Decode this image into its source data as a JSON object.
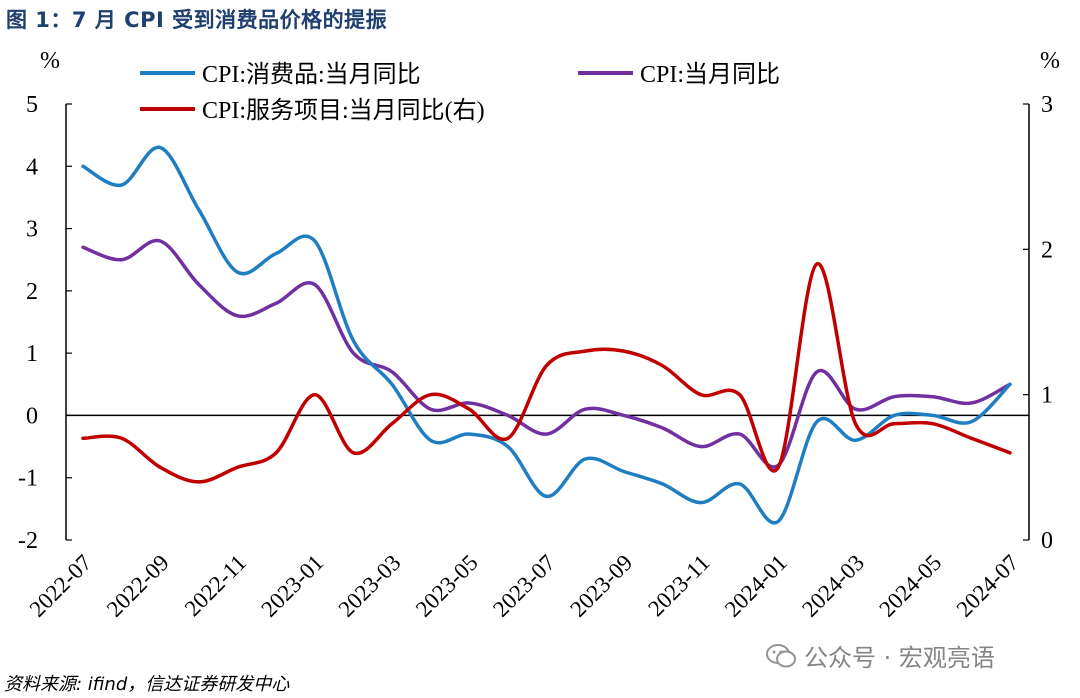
{
  "title": "图 1：7 月 CPI 受到消费品价格的提振",
  "source": "资料来源: ifind，信达证券研发中心",
  "watermark": "公众号 · 宏观亮语",
  "chart_data": {
    "type": "line",
    "title": "图 1：7 月 CPI 受到消费品价格的提振",
    "left_axis": {
      "unit": "%",
      "ylim": [
        -2,
        5
      ],
      "ticks": [
        -2,
        -1,
        0,
        1,
        2,
        3,
        4,
        5
      ]
    },
    "right_axis": {
      "unit": "%",
      "ylim": [
        0,
        3
      ],
      "ticks": [
        0,
        1,
        2,
        3
      ]
    },
    "x_tick_labels": [
      "2022-07",
      "2022-09",
      "2022-11",
      "2023-01",
      "2023-03",
      "2023-05",
      "2023-07",
      "2023-09",
      "2023-11",
      "2024-01",
      "2024-03",
      "2024-05",
      "2024-07"
    ],
    "x": [
      "2022-07",
      "2022-08",
      "2022-09",
      "2022-10",
      "2022-11",
      "2022-12",
      "2023-01",
      "2023-02",
      "2023-03",
      "2023-04",
      "2023-05",
      "2023-06",
      "2023-07",
      "2023-08",
      "2023-09",
      "2023-10",
      "2023-11",
      "2023-12",
      "2024-01",
      "2024-02",
      "2024-03",
      "2024-04",
      "2024-05",
      "2024-06",
      "2024-07"
    ],
    "legend": "top",
    "grid": false,
    "series": [
      {
        "name": "CPI:消费品:当月同比",
        "axis": "left",
        "color": "#1f7ec2",
        "values": [
          4.0,
          3.7,
          4.3,
          3.3,
          2.3,
          2.6,
          2.8,
          1.2,
          0.5,
          -0.4,
          -0.3,
          -0.5,
          -1.3,
          -0.7,
          -0.9,
          -1.1,
          -1.4,
          -1.1,
          -1.7,
          -0.1,
          -0.4,
          0.0,
          0.0,
          -0.1,
          0.5
        ]
      },
      {
        "name": "CPI:当月同比",
        "axis": "left",
        "color": "#7030a0",
        "values": [
          2.7,
          2.5,
          2.8,
          2.1,
          1.6,
          1.8,
          2.1,
          1.0,
          0.7,
          0.1,
          0.2,
          0.0,
          -0.3,
          0.1,
          0.0,
          -0.2,
          -0.5,
          -0.3,
          -0.8,
          0.7,
          0.1,
          0.3,
          0.3,
          0.2,
          0.5
        ]
      },
      {
        "name": "CPI:服务项目:当月同比(右)",
        "axis": "right",
        "color": "#c00000",
        "values": [
          0.7,
          0.7,
          0.5,
          0.4,
          0.5,
          0.6,
          1.0,
          0.6,
          0.8,
          1.0,
          0.9,
          0.7,
          1.2,
          1.3,
          1.3,
          1.2,
          1.0,
          1.0,
          0.5,
          1.9,
          0.8,
          0.8,
          0.8,
          0.7,
          0.6
        ]
      }
    ]
  }
}
